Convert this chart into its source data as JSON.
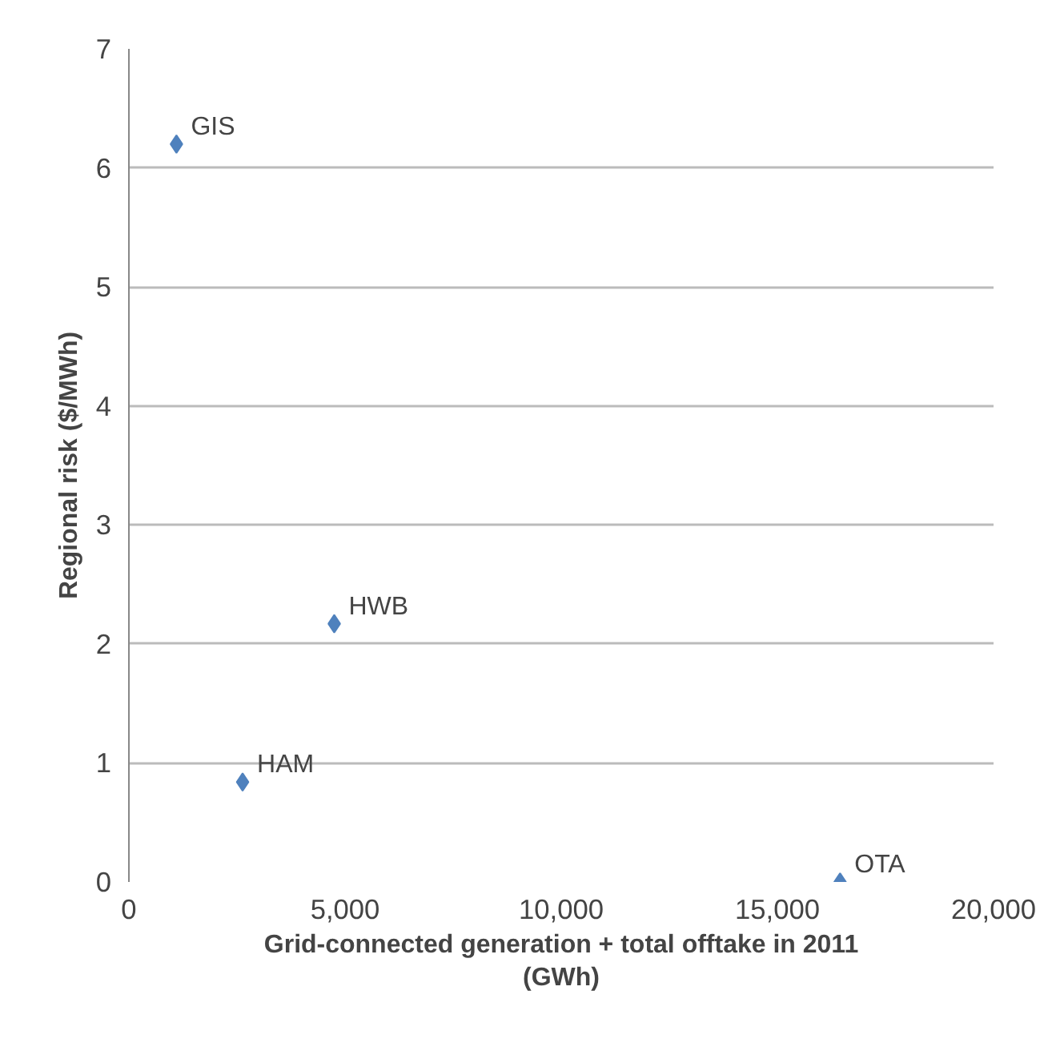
{
  "chart_data": {
    "type": "scatter",
    "xlabel": "Grid-connected generation + total offtake in 2011 (GWh)",
    "ylabel": "Regional risk ($/MWh)",
    "x": [
      1100,
      4750,
      2630,
      16450
    ],
    "series": [
      {
        "color": "#4f81bd",
        "values": [
          6.2,
          2.17,
          0.84,
          0
        ]
      }
    ],
    "annotations": [
      {
        "text": "GIS",
        "x": 1100,
        "y": 6.2
      },
      {
        "text": "HWB",
        "x": 4750,
        "y": 2.17
      },
      {
        "text": "HAM",
        "x": 2630,
        "y": 0.84
      },
      {
        "text": "OTA",
        "x": 16450,
        "y": 0
      }
    ],
    "xlim": [
      0,
      20000
    ],
    "ylim": [
      0,
      7
    ],
    "xticks": [
      {
        "value": 0,
        "label": "0"
      },
      {
        "value": 5000,
        "label": "5,000"
      },
      {
        "value": 10000,
        "label": "10,000"
      },
      {
        "value": 15000,
        "label": "15,000"
      },
      {
        "value": 20000,
        "label": "20,000"
      }
    ],
    "yticks": [
      0,
      1,
      2,
      3,
      4,
      5,
      6,
      7
    ],
    "grid": "y",
    "marker": "diamond"
  }
}
